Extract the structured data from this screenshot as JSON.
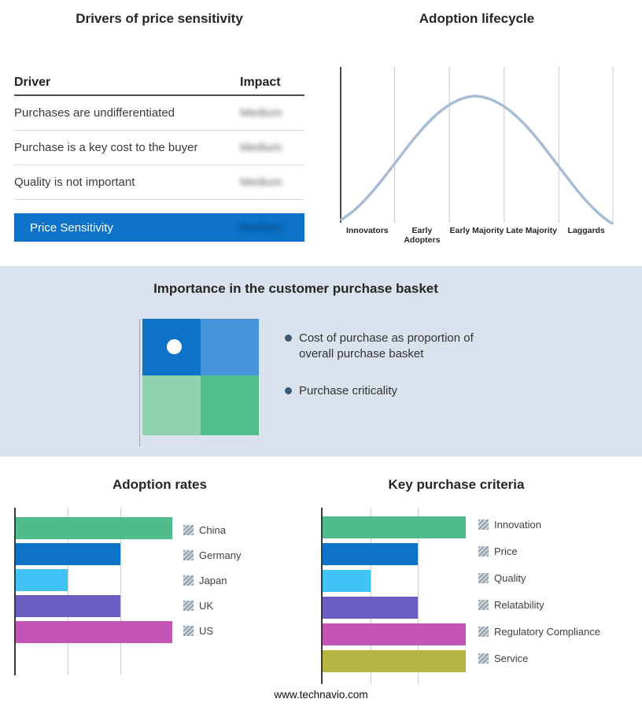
{
  "colors": {
    "primary_blue": "#0d73c9",
    "quad_tl": "#0d73c9",
    "quad_tr": "#4694d9",
    "quad_bl": "#8ed3ae",
    "quad_br": "#52bd8b",
    "curve": "#a8bcd4",
    "middle_band_bg": "#d9e2ed",
    "bullet_dot": "#3e5973"
  },
  "drivers_panel": {
    "title": "Drivers of price sensitivity",
    "table": {
      "headers": {
        "driver": "Driver",
        "impact": "Impact"
      },
      "rows": [
        {
          "driver": "Purchases are undifferentiated",
          "impact": "Medium"
        },
        {
          "driver": "Purchase is a key cost to the buyer",
          "impact": "Medium"
        },
        {
          "driver": "Quality is not important",
          "impact": "Medium"
        }
      ],
      "summary_row": {
        "driver": "Price Sensitivity",
        "impact": "Medium"
      }
    }
  },
  "lifecycle_panel": {
    "title": "Adoption lifecycle",
    "stages": [
      "Innovators",
      "Early Adopters",
      "Early Majority",
      "Late Majority",
      "Laggards"
    ]
  },
  "basket_panel": {
    "title": "Importance in the customer purchase basket",
    "bullets": [
      "Cost of purchase as proportion of overall purchase basket",
      "Purchase criticality"
    ]
  },
  "footer": {
    "url": "www.technavio.com"
  },
  "chart_data": [
    {
      "type": "bar",
      "title": "Adoption rates",
      "orientation": "horizontal",
      "categories": [
        "China",
        "Germany",
        "Japan",
        "UK",
        "US"
      ],
      "values": [
        3,
        2,
        1,
        2,
        3
      ],
      "xlim": [
        0,
        3
      ],
      "grid": true,
      "legend_position": "right",
      "colors": [
        "#4fbd8b",
        "#0d73c9",
        "#41c3f5",
        "#6a5fc0",
        "#c356b4"
      ]
    },
    {
      "type": "bar",
      "title": "Key purchase criteria",
      "orientation": "horizontal",
      "categories": [
        "Innovation",
        "Price",
        "Quality",
        "Relatability",
        "Regulatory Compliance",
        "Service"
      ],
      "values": [
        3,
        2,
        1,
        2,
        3,
        3
      ],
      "xlim": [
        0,
        3
      ],
      "grid": true,
      "legend_position": "right",
      "colors": [
        "#4fbd8b",
        "#0d73c9",
        "#41c3f5",
        "#6a5fc0",
        "#c356b4",
        "#b9b542"
      ]
    },
    {
      "type": "line",
      "title": "Adoption lifecycle",
      "shape": "bell-curve",
      "x_categories": [
        "Innovators",
        "Early Adopters",
        "Early Majority",
        "Late Majority",
        "Laggards"
      ],
      "peak_at": "Early Majority",
      "grid": true
    }
  ]
}
